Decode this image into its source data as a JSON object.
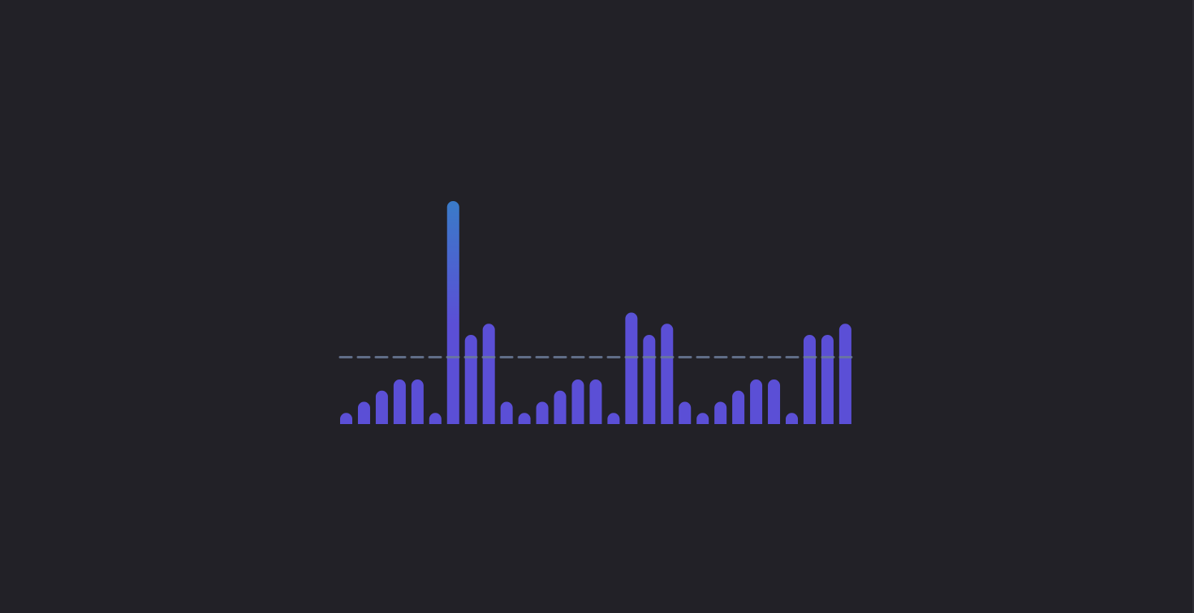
{
  "chart_data": {
    "type": "bar",
    "title": "",
    "xlabel": "",
    "ylabel": "",
    "ylim": [
      0,
      20
    ],
    "grid": false,
    "legend": "none",
    "values": [
      1,
      2,
      3,
      4,
      4,
      1,
      20,
      8,
      9,
      2,
      1,
      2,
      3,
      4,
      4,
      1,
      10,
      8,
      9,
      2,
      1,
      2,
      3,
      4,
      4,
      1,
      8,
      8,
      9
    ],
    "reference_line": {
      "value": 6,
      "style": "dashed"
    },
    "colors": {
      "bar": "#5b4fd6",
      "bar_top": "#3a7bc8",
      "reference_line": "#6b7a99",
      "background": "#222127"
    }
  }
}
